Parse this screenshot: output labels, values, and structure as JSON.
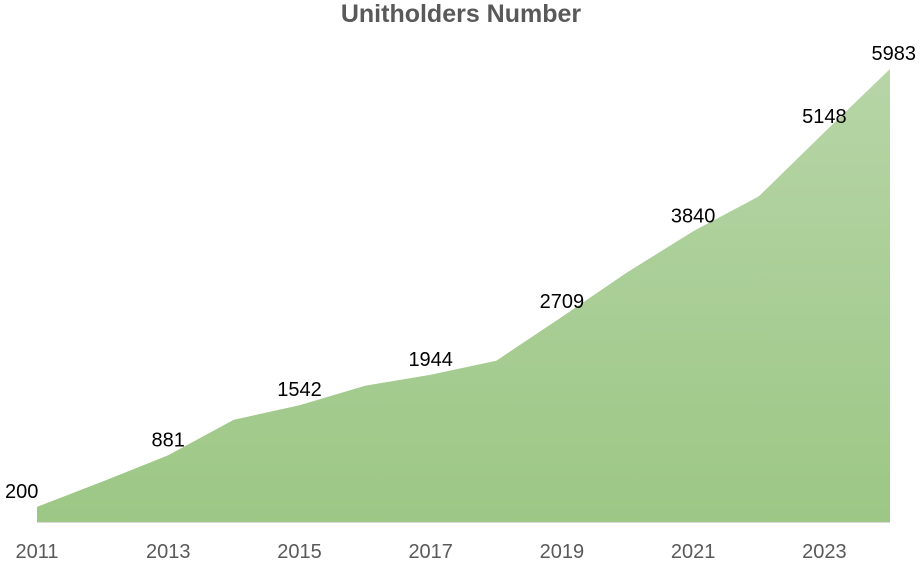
{
  "chart_data": {
    "type": "area",
    "title": "Unitholders Number",
    "xlabel": "",
    "ylabel": "",
    "x": [
      2011,
      2012,
      2013,
      2014,
      2015,
      2016,
      2017,
      2018,
      2019,
      2020,
      2021,
      2022,
      2023,
      2024
    ],
    "values": [
      200,
      535,
      881,
      1350,
      1542,
      1800,
      1944,
      2130,
      2709,
      3300,
      3840,
      4300,
      5148,
      5983
    ],
    "data_labels": [
      {
        "x": 2011,
        "text": "200"
      },
      {
        "x": 2013,
        "text": "881"
      },
      {
        "x": 2015,
        "text": "1542"
      },
      {
        "x": 2017,
        "text": "1944"
      },
      {
        "x": 2019,
        "text": "2709"
      },
      {
        "x": 2021,
        "text": "3840"
      },
      {
        "x": 2023,
        "text": "5148"
      },
      {
        "x": 2024,
        "text": "5983"
      }
    ],
    "x_ticks": [
      "2011",
      "2013",
      "2015",
      "2017",
      "2019",
      "2021",
      "2023"
    ],
    "ylim": [
      0,
      6300
    ],
    "grid": false,
    "legend": "none",
    "colors": {
      "fill_top": "#b7d5a7",
      "fill_bottom": "#9cc785",
      "title": "#595959",
      "tick": "#595959",
      "label": "#000000"
    }
  }
}
